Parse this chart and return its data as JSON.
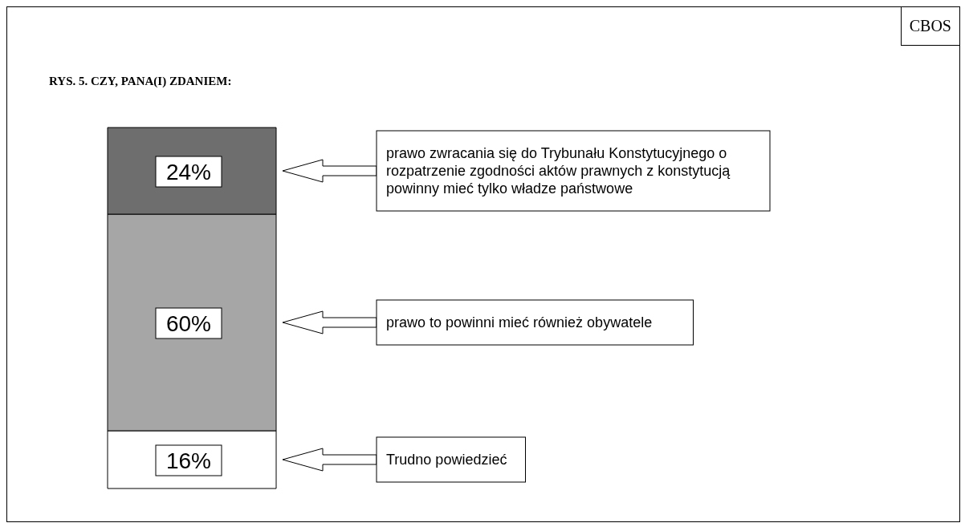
{
  "chart_data": {
    "type": "bar",
    "stacked": true,
    "title": "RYS. 5. CZY, PANA(I) ZDANIEM:",
    "annotations": [
      "CBOS"
    ],
    "categories": [
      null
    ],
    "series": [
      {
        "name": "Trudno powiedzieć",
        "color": "#ffffff",
        "values": [
          16
        ],
        "value_labels": [
          "16%"
        ]
      },
      {
        "name": "prawo to powinni mieć również obywatele",
        "color": "#a6a6a6",
        "values": [
          60
        ],
        "value_labels": [
          "60%"
        ]
      },
      {
        "name": "prawo zwracania się do Trybunału Konstytucyjnego o rozpatrzenie zgodności aktów prawnych z konstytucją powinny mieć tylko władze państwowe",
        "color": "#6e6e6e",
        "values": [
          24
        ],
        "value_labels": [
          "24%"
        ]
      }
    ]
  }
}
